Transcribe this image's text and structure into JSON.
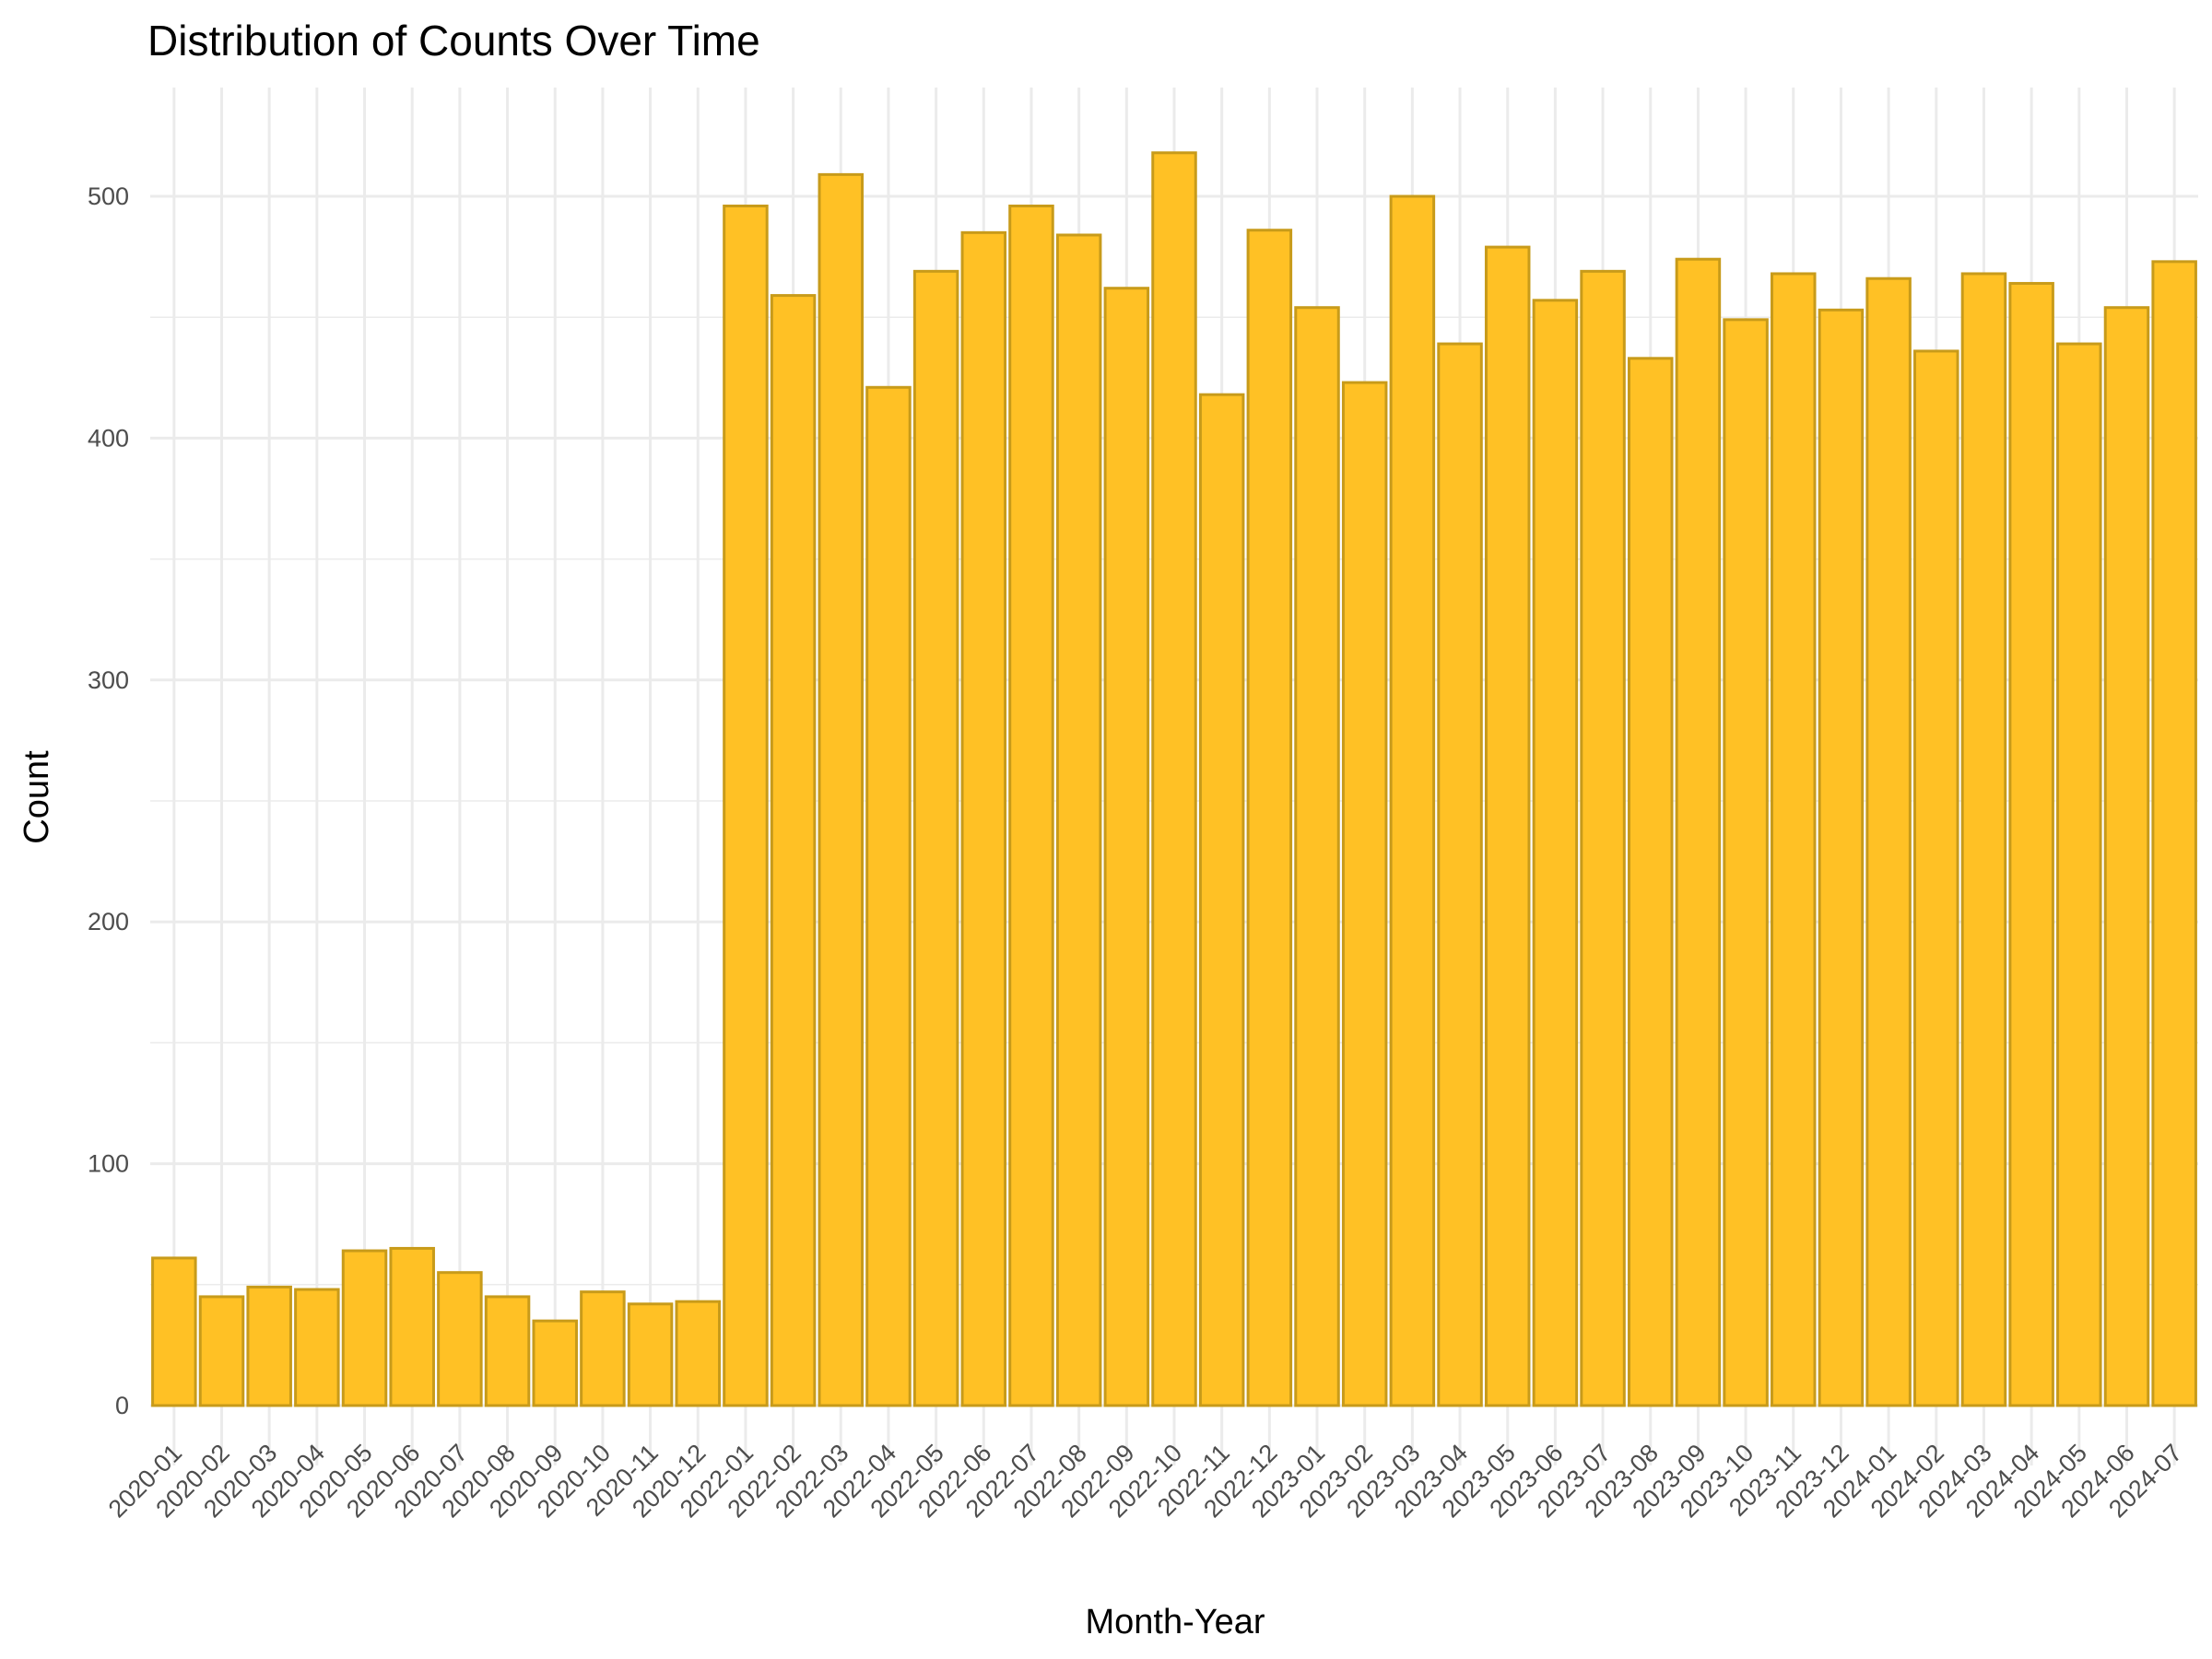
{
  "chart_data": {
    "type": "bar",
    "title": "Distribution of Counts Over Time",
    "xlabel": "Month-Year",
    "ylabel": "Count",
    "ylim": [
      0,
      545
    ],
    "yticks": [
      0,
      100,
      200,
      300,
      400,
      500
    ],
    "grid": true,
    "legend": "none",
    "bar_fill": "#FFC125",
    "bar_outline": "#C89B1A",
    "categories": [
      "2020-01",
      "2020-02",
      "2020-03",
      "2020-04",
      "2020-05",
      "2020-06",
      "2020-07",
      "2020-08",
      "2020-09",
      "2020-10",
      "2020-11",
      "2020-12",
      "2022-01",
      "2022-02",
      "2022-03",
      "2022-04",
      "2022-05",
      "2022-06",
      "2022-07",
      "2022-08",
      "2022-09",
      "2022-10",
      "2022-11",
      "2022-12",
      "2023-01",
      "2023-02",
      "2023-03",
      "2023-04",
      "2023-05",
      "2023-06",
      "2023-07",
      "2023-08",
      "2023-09",
      "2023-10",
      "2023-11",
      "2023-12",
      "2024-01",
      "2024-02",
      "2024-03",
      "2024-04",
      "2024-05",
      "2024-06",
      "2024-07"
    ],
    "values": [
      61,
      45,
      49,
      48,
      64,
      65,
      55,
      45,
      35,
      47,
      42,
      43,
      496,
      459,
      509,
      421,
      469,
      485,
      496,
      484,
      462,
      518,
      418,
      486,
      454,
      423,
      500,
      439,
      479,
      457,
      469,
      433,
      474,
      449,
      468,
      453,
      466,
      436,
      468,
      464,
      439,
      454,
      473
    ]
  }
}
